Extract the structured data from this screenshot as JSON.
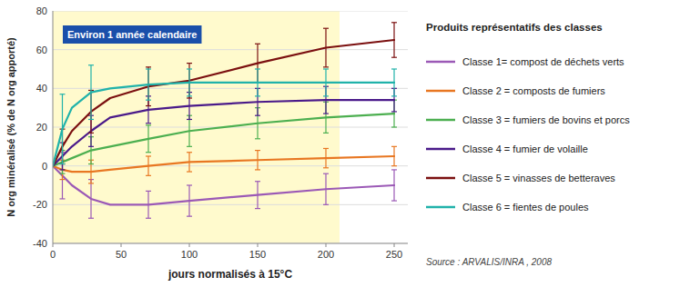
{
  "chart_data": {
    "type": "line",
    "xlabel": "jours normalisés à 15°C",
    "ylabel": "N org minéralisé (% de N org apporté)",
    "annotations": [
      "Environ 1 année calendaire"
    ],
    "legend_title": "Produits représentatifs des classes",
    "source": "Source : ARVALIS/INRA , 2008",
    "legend": "right",
    "grid": true,
    "xlim": [
      0,
      260
    ],
    "ylim": [
      -40,
      80
    ],
    "xticks": [
      0,
      50,
      100,
      150,
      200,
      250
    ],
    "yticks": [
      -40,
      -20,
      0,
      20,
      40,
      60,
      80
    ],
    "shaded_region": {
      "x0": 0,
      "x1": 210,
      "color": "#fffacd"
    },
    "x": [
      0,
      7,
      14,
      28,
      42,
      70,
      100,
      150,
      200,
      250
    ],
    "series": [
      {
        "name": "Classe 1= compost de déchets verts",
        "color": "#9b59b6",
        "values": [
          0,
          -5,
          -10,
          -17,
          -20,
          -20,
          -18,
          -15,
          -12,
          -10
        ],
        "error_bars": {
          "x": [
            7,
            28,
            70,
            100,
            150,
            200,
            250
          ],
          "values": [
            -5,
            -17,
            -20,
            -18,
            -15,
            -12,
            -10
          ],
          "errors": [
            12,
            10,
            7,
            8,
            7,
            8,
            8
          ]
        }
      },
      {
        "name": "Classe 2 = composts de fumiers",
        "color": "#e87722",
        "values": [
          0,
          -2,
          -3,
          -3,
          -2,
          0,
          2,
          3,
          4,
          5
        ],
        "error_bars": {
          "x": [
            7,
            28,
            70,
            100,
            150,
            200,
            250
          ],
          "values": [
            -2,
            -3,
            0,
            2,
            3,
            4,
            5
          ],
          "errors": [
            5,
            6,
            5,
            5,
            5,
            5,
            5
          ]
        }
      },
      {
        "name": "Classe 3 = fumiers de bovins et porcs",
        "color": "#4caf50",
        "values": [
          0,
          2,
          4,
          8,
          10,
          14,
          18,
          22,
          25,
          27
        ],
        "error_bars": {
          "x": [
            7,
            28,
            70,
            100,
            150,
            200,
            250
          ],
          "values": [
            2,
            8,
            14,
            18,
            22,
            25,
            27
          ],
          "errors": [
            6,
            7,
            7,
            8,
            8,
            8,
            7
          ]
        }
      },
      {
        "name": "Classe 4 = fumier de volaille",
        "color": "#4a1a8a",
        "values": [
          0,
          5,
          10,
          18,
          25,
          29,
          31,
          33,
          34,
          34
        ],
        "error_bars": {
          "x": [
            7,
            28,
            70,
            100,
            150,
            200,
            250
          ],
          "values": [
            5,
            18,
            29,
            31,
            33,
            34,
            34
          ],
          "errors": [
            7,
            8,
            7,
            7,
            7,
            7,
            6
          ]
        }
      },
      {
        "name": "Classe 5 = vinasses de betteraves",
        "color": "#7b1010",
        "values": [
          0,
          10,
          18,
          28,
          35,
          41,
          44,
          53,
          61,
          65
        ],
        "error_bars": {
          "x": [
            7,
            28,
            70,
            100,
            150,
            200,
            250
          ],
          "values": [
            10,
            28,
            41,
            44,
            53,
            61,
            65
          ],
          "errors": [
            9,
            11,
            10,
            9,
            10,
            10,
            9
          ]
        }
      },
      {
        "name": "Classe 6 = fientes de poules",
        "color": "#20b2aa",
        "values": [
          0,
          19,
          30,
          38,
          40,
          42,
          43,
          43,
          43,
          43
        ],
        "error_bars": {
          "x": [
            7,
            28,
            70,
            100,
            150,
            200,
            250
          ],
          "values": [
            19,
            38,
            42,
            43,
            43,
            43,
            43
          ],
          "errors": [
            18,
            14,
            8,
            7,
            7,
            7,
            7
          ]
        }
      }
    ]
  }
}
